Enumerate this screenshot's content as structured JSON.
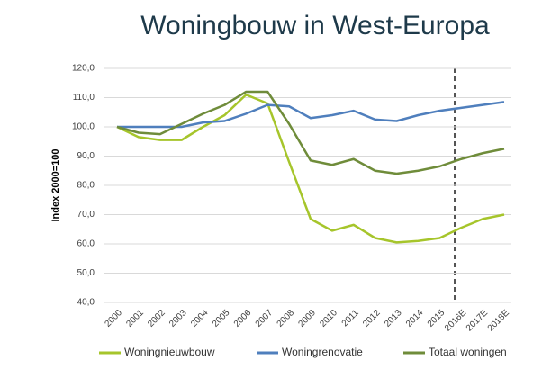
{
  "chart_data": {
    "type": "line",
    "title": "Woningbouw in West-Europa",
    "y_label": "Index 2000=100",
    "categories": [
      "2000",
      "2001",
      "2002",
      "2003",
      "2004",
      "2005",
      "2006",
      "2007",
      "2008",
      "2009",
      "2010",
      "2011",
      "2012",
      "2013",
      "2014",
      "2015",
      "2016E",
      "2017E",
      "2018E"
    ],
    "series": [
      {
        "name": "Woningnieuwbouw",
        "color": "#a6c52b",
        "values": [
          100,
          96.5,
          95.5,
          95.5,
          100,
          104,
          111,
          108,
          88,
          68.5,
          64.5,
          66.5,
          62,
          60.5,
          61,
          62,
          65.5,
          68.5,
          70
        ]
      },
      {
        "name": "Woningrenovatie",
        "color": "#4f7fbd",
        "values": [
          100,
          100,
          100,
          100,
          101.5,
          102,
          104.5,
          107.5,
          107,
          103,
          104,
          105.5,
          102.5,
          102,
          104,
          105.5,
          106.5,
          107.5,
          108.5
        ]
      },
      {
        "name": "Totaal woningen",
        "color": "#6f8c3a",
        "values": [
          100,
          98,
          97.5,
          101,
          104.5,
          107.5,
          112,
          112,
          101,
          88.5,
          87,
          89,
          85,
          84,
          85,
          86.5,
          89,
          91,
          92.5
        ]
      }
    ],
    "ylim": [
      40,
      120
    ],
    "yticks": [
      {
        "value": 40,
        "label": "40,0"
      },
      {
        "value": 50,
        "label": "50,0"
      },
      {
        "value": 60,
        "label": "60,0"
      },
      {
        "value": 70,
        "label": "70,0"
      },
      {
        "value": 80,
        "label": "80,0"
      },
      {
        "value": 90,
        "label": "90,0"
      },
      {
        "value": 100,
        "label": "100,0"
      },
      {
        "value": 110,
        "label": "110,0"
      },
      {
        "value": 120,
        "label": "120,0"
      }
    ],
    "grid": true
  }
}
